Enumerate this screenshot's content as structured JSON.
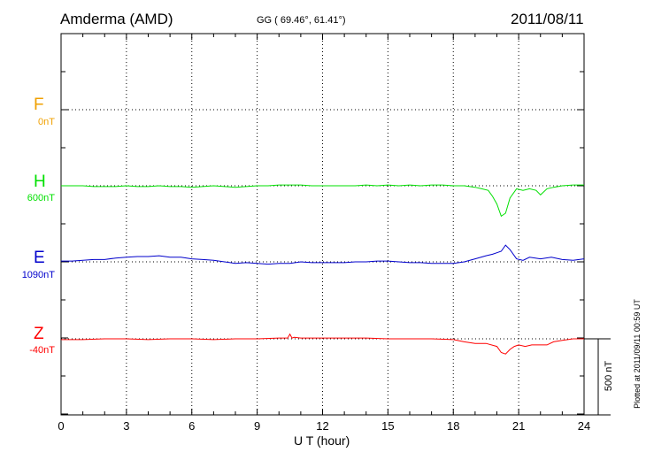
{
  "header": {
    "station": "Amderma (AMD)",
    "coords": "GG ( 69.46°,  61.41°)",
    "date": "2011/08/11"
  },
  "footer": {
    "plotted": "Plotted at 2011/09/11 00:59 UT"
  },
  "scale_bar": {
    "label": "500 nT",
    "value_nT": 500
  },
  "chart_data": {
    "type": "line",
    "xlabel": "U T (hour)",
    "xlim": [
      0,
      24
    ],
    "xticks": [
      0,
      3,
      6,
      9,
      12,
      15,
      18,
      21,
      24
    ],
    "xtick_labels": [
      "0",
      "3",
      "6",
      "9",
      "12",
      "15",
      "18",
      "21",
      "24"
    ],
    "grid": true,
    "nT_per_division": 500,
    "series": [
      {
        "name": "F",
        "baseline_label": "0nT",
        "color": "#f0a000",
        "x": [],
        "y": []
      },
      {
        "name": "H",
        "baseline_label": "600nT",
        "color": "#00e000",
        "x": [
          0,
          0.5,
          1,
          1.5,
          2,
          2.5,
          3,
          3.5,
          4,
          4.5,
          5,
          5.5,
          6,
          6.5,
          7,
          7.5,
          8,
          8.5,
          9,
          9.5,
          10,
          10.5,
          11,
          11.5,
          12,
          12.5,
          13,
          13.5,
          14,
          14.5,
          15,
          15.5,
          16,
          16.5,
          17,
          17.5,
          18,
          18.5,
          19,
          19.3,
          19.6,
          19.8,
          20.0,
          20.2,
          20.4,
          20.6,
          20.9,
          21.2,
          21.5,
          21.8,
          22.0,
          22.3,
          22.6,
          23,
          23.5,
          24
        ],
        "y": [
          0,
          0,
          0,
          -5,
          -5,
          -5,
          0,
          -5,
          -5,
          0,
          -5,
          -5,
          -10,
          -5,
          0,
          -5,
          -10,
          -5,
          0,
          0,
          5,
          5,
          5,
          0,
          0,
          0,
          0,
          0,
          5,
          0,
          5,
          0,
          5,
          0,
          5,
          5,
          0,
          0,
          -10,
          -20,
          -30,
          -70,
          -120,
          -200,
          -180,
          -80,
          -20,
          -30,
          -20,
          -30,
          -60,
          -20,
          -10,
          0,
          5,
          5
        ]
      },
      {
        "name": "E",
        "baseline_label": "1090nT",
        "color": "#0000cc",
        "x": [
          0,
          0.5,
          1,
          1.5,
          2,
          2.5,
          3,
          3.5,
          4,
          4.5,
          5,
          5.5,
          6,
          6.5,
          7,
          7.5,
          8,
          8.5,
          9,
          9.5,
          10,
          10.5,
          11,
          11.5,
          12,
          12.5,
          13,
          13.5,
          14,
          14.5,
          15,
          15.5,
          16,
          16.5,
          17,
          17.5,
          18,
          18.5,
          19,
          19.5,
          19.8,
          20.0,
          20.2,
          20.4,
          20.6,
          20.9,
          21.2,
          21.5,
          22,
          22.5,
          23,
          23.5,
          24
        ],
        "y": [
          5,
          5,
          10,
          15,
          15,
          25,
          30,
          35,
          35,
          40,
          30,
          30,
          20,
          15,
          10,
          0,
          -10,
          -5,
          -10,
          -15,
          -10,
          -10,
          0,
          -5,
          -5,
          -5,
          -5,
          0,
          0,
          5,
          5,
          0,
          -5,
          -5,
          -10,
          -10,
          -10,
          0,
          20,
          40,
          50,
          60,
          70,
          110,
          80,
          20,
          10,
          30,
          20,
          30,
          15,
          10,
          20
        ]
      },
      {
        "name": "Z",
        "baseline_label": "-40nT",
        "color": "#ff0000",
        "x": [
          0,
          1,
          2,
          3,
          4,
          5,
          6,
          7,
          8,
          9,
          10,
          10.4,
          10.5,
          10.6,
          10.7,
          11,
          12,
          13,
          14,
          15,
          16,
          17,
          18,
          18.5,
          19,
          19.5,
          20.0,
          20.2,
          20.4,
          20.6,
          20.8,
          21.0,
          21.3,
          21.6,
          22.0,
          22.3,
          22.6,
          23,
          23.5,
          24
        ],
        "y": [
          -5,
          -5,
          0,
          0,
          -5,
          0,
          0,
          -5,
          0,
          0,
          5,
          5,
          30,
          5,
          10,
          5,
          5,
          5,
          5,
          0,
          0,
          0,
          -5,
          -20,
          -30,
          -30,
          -50,
          -90,
          -100,
          -70,
          -50,
          -40,
          -50,
          -40,
          -40,
          -40,
          -20,
          -10,
          0,
          0
        ]
      }
    ]
  }
}
